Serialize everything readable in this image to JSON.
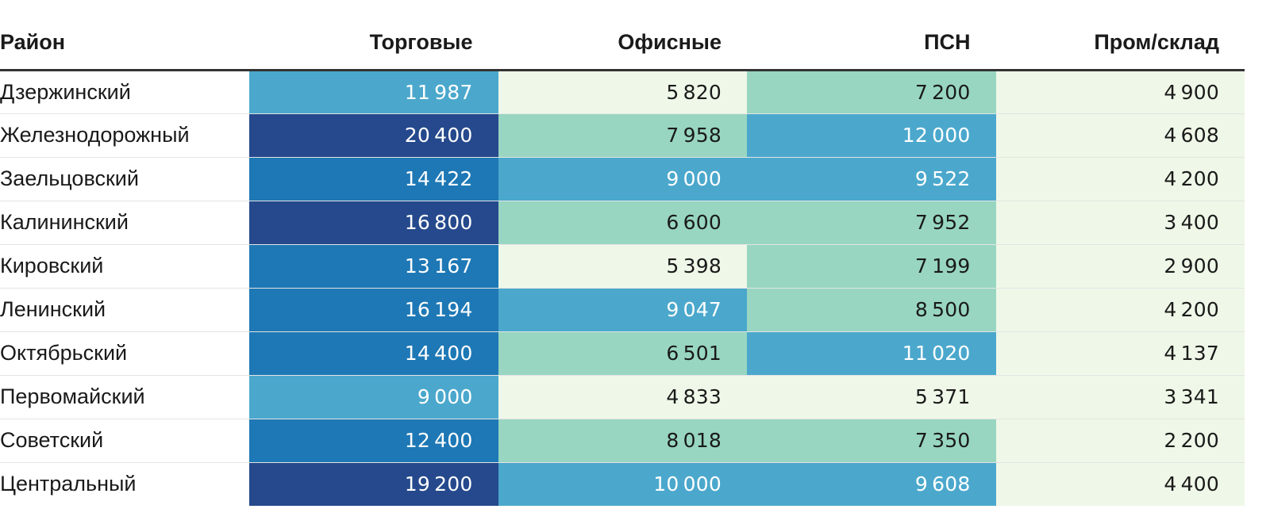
{
  "chart_data": {
    "type": "table",
    "title": "",
    "columns": [
      "Район",
      "Торговые",
      "Офисные",
      "ПСН",
      "Пром/склад"
    ],
    "rows": [
      {
        "district": "Дзержинский",
        "values": [
          11987,
          5820,
          7200,
          4900
        ]
      },
      {
        "district": "Железнодорожный",
        "values": [
          20400,
          7958,
          12000,
          4608
        ]
      },
      {
        "district": "Заельцовский",
        "values": [
          14422,
          9000,
          9522,
          4200
        ]
      },
      {
        "district": "Калининский",
        "values": [
          16800,
          6600,
          7952,
          3400
        ]
      },
      {
        "district": "Кировский",
        "values": [
          13167,
          5398,
          7199,
          2900
        ]
      },
      {
        "district": "Ленинский",
        "values": [
          16194,
          9047,
          8500,
          4200
        ]
      },
      {
        "district": "Октябрьский",
        "values": [
          14400,
          6501,
          11020,
          4137
        ]
      },
      {
        "district": "Первомайский",
        "values": [
          9000,
          4833,
          5371,
          3341
        ]
      },
      {
        "district": "Советский",
        "values": [
          12400,
          8018,
          7350,
          2200
        ]
      },
      {
        "district": "Центральный",
        "values": [
          19200,
          10000,
          9608,
          4400
        ]
      }
    ],
    "color_scale": {
      "thresholds": [
        6000,
        9000,
        12400,
        16800
      ],
      "colors": [
        "#eff8e8",
        "#98d6c2",
        "#4ba8cc",
        "#1e78b5",
        "#25498c"
      ],
      "text_colors": [
        "#1a1a1a",
        "#1a1a1a",
        "#ffffff",
        "#ffffff",
        "#ffffff"
      ]
    }
  }
}
